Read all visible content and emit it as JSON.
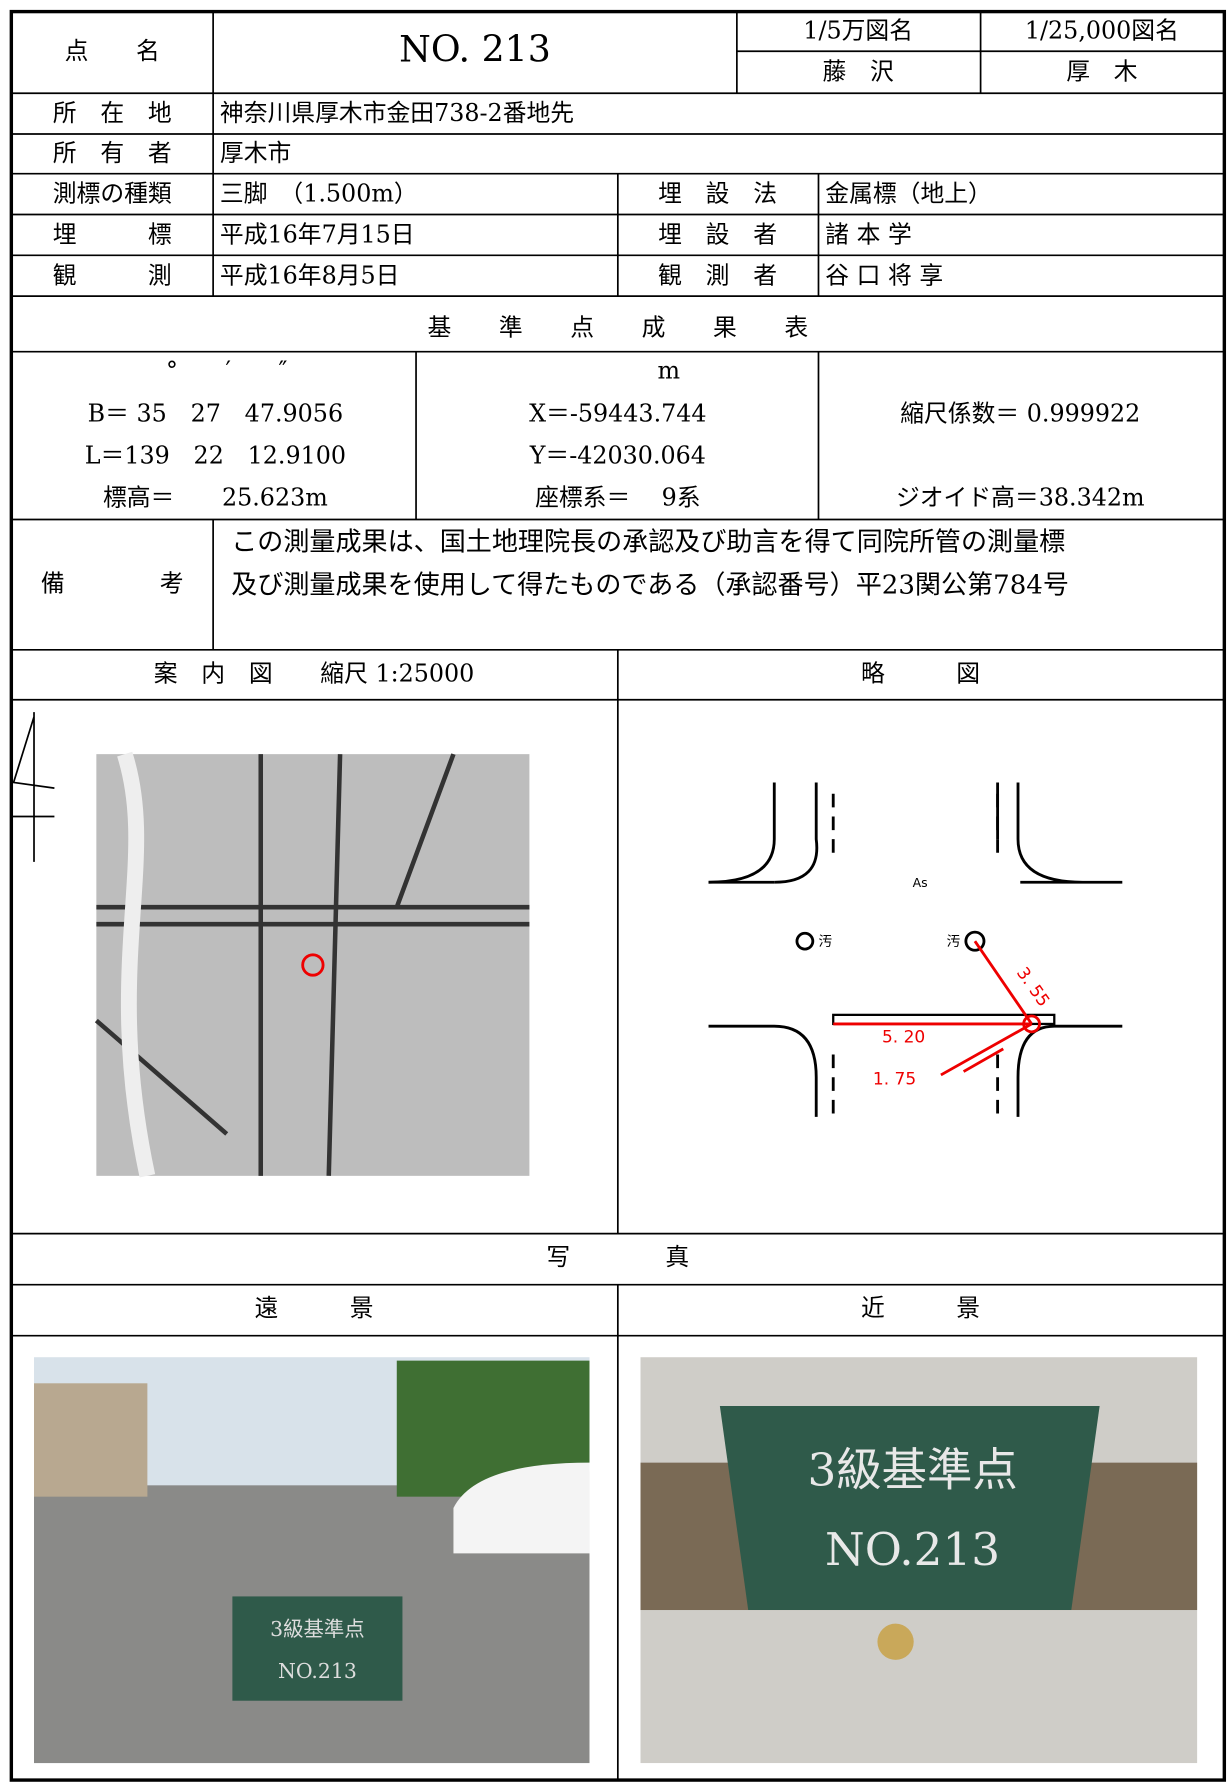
{
  "header": {
    "point_label": "点　　名",
    "point_name": "NO. 213",
    "map50k_label": "1/5万図名",
    "map25k_label": "1/25,000図名",
    "map50k": "藤　沢",
    "map25k": "厚　木"
  },
  "info": {
    "location_label": "所　在　地",
    "location": "神奈川県厚木市金田738-2番地先",
    "owner_label": "所　有　者",
    "owner": "厚木市",
    "type_label": "測標の種類",
    "type": "三脚　（1.500m）",
    "method_label": "埋　設　法",
    "method": "金属標（地上）",
    "buried_label": "埋　　　標",
    "buried": "平成16年7月15日",
    "burier_label": "埋　設　者",
    "burier": "諸 本 学",
    "observed_label": "観　　　測",
    "observed": "平成16年8月5日",
    "observer_label": "観　測　者",
    "observer": "谷 口 将 享"
  },
  "results": {
    "title": "基　　準　　点　　成　　果　　表",
    "angle_units": "°　　′　　″",
    "B": "B＝ 35　27　47.9056",
    "L": "L＝139　22　12.9100",
    "height": "標高＝　　25.623m",
    "xy_unit": "m",
    "X": "X＝-59443.744",
    "Y": "Y＝-42030.064",
    "coord_system": "座標系＝　 9系",
    "scale_factor": "縮尺係数＝ 0.999922",
    "geoid": "ジオイド高＝38.342m"
  },
  "remarks": {
    "label": "備　　　　考",
    "lines": [
      "この測量成果は、国土地理院長の承認及び助言を得て同院所管の測量標",
      "及び測量成果を使用して得たものである（承認番号）平23関公第784号"
    ]
  },
  "maps": {
    "guide_title": "案　内　図　　縮尺 1:25000",
    "sketch_title": "略　　　図",
    "sketch_labels": {
      "surface": "As",
      "sewer_left": "汚",
      "sewer_right": "汚",
      "d1": "3. 55",
      "d2": "5. 20",
      "d3": "1. 75"
    }
  },
  "photos": {
    "title": "写　　　　真",
    "far_title": "遠　　　景",
    "near_title": "近　　　景",
    "board_text": "3級基準点",
    "board_number": "NO.213"
  }
}
